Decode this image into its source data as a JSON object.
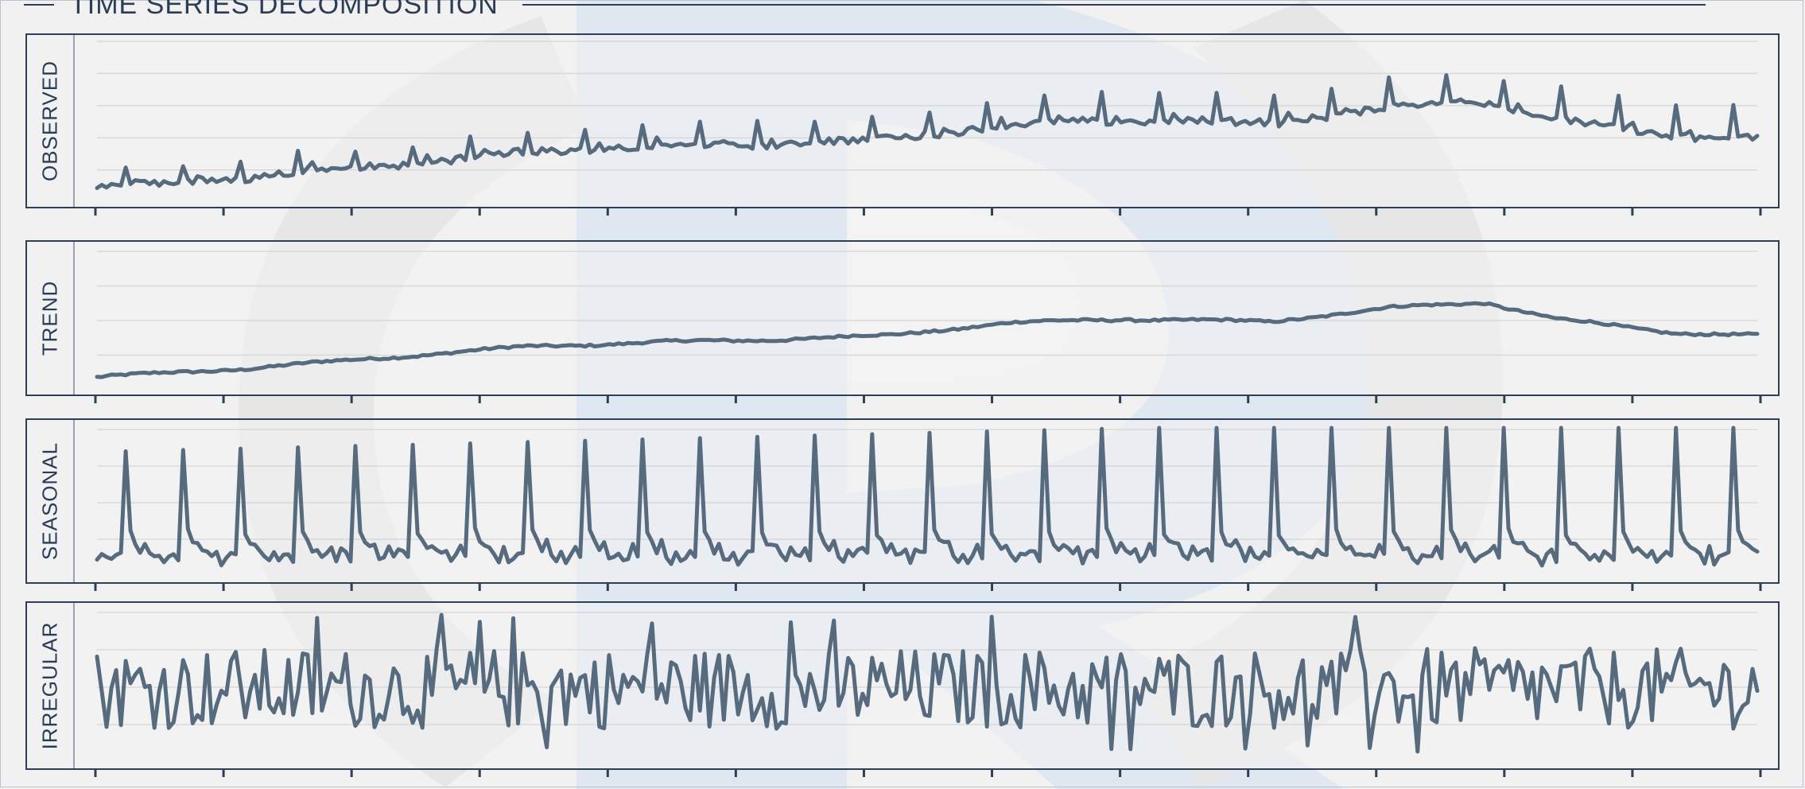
{
  "title": "TIME SERIES DECOMPOSITION",
  "colors": {
    "line": "#566b7e",
    "frame": "#2f3f57",
    "grid": "#d9d9d9",
    "panel_bg": "#f3f3f3",
    "watermark_blue": "#dde6f0",
    "watermark_gray": "#e7e7e7"
  },
  "chart_data": [
    {
      "type": "line",
      "panel_label": "OBSERVED",
      "n_points": 348,
      "season_length": 12,
      "ylim": [
        0,
        100
      ],
      "y_values_note": "Unlabeled y axis; shape estimated on a 0-100 scale",
      "series": [
        {
          "values": []
        }
      ],
      "grid": true,
      "x_ticks": 14
    },
    {
      "type": "line",
      "panel_label": "TREND",
      "n_points": 348,
      "ylim": [
        0,
        100
      ],
      "series": [
        {
          "values": []
        }
      ],
      "grid": true,
      "x_ticks": 14
    },
    {
      "type": "line",
      "panel_label": "SEASONAL",
      "n_points": 348,
      "season_length": 12,
      "ylim": [
        0,
        100
      ],
      "series": [
        {
          "values": []
        }
      ],
      "grid": true,
      "x_ticks": 14
    },
    {
      "type": "line",
      "panel_label": "IRREGULAR",
      "n_points": 348,
      "ylim": [
        0,
        100
      ],
      "series": [
        {
          "values": []
        }
      ],
      "grid": true,
      "x_ticks": 14
    }
  ]
}
